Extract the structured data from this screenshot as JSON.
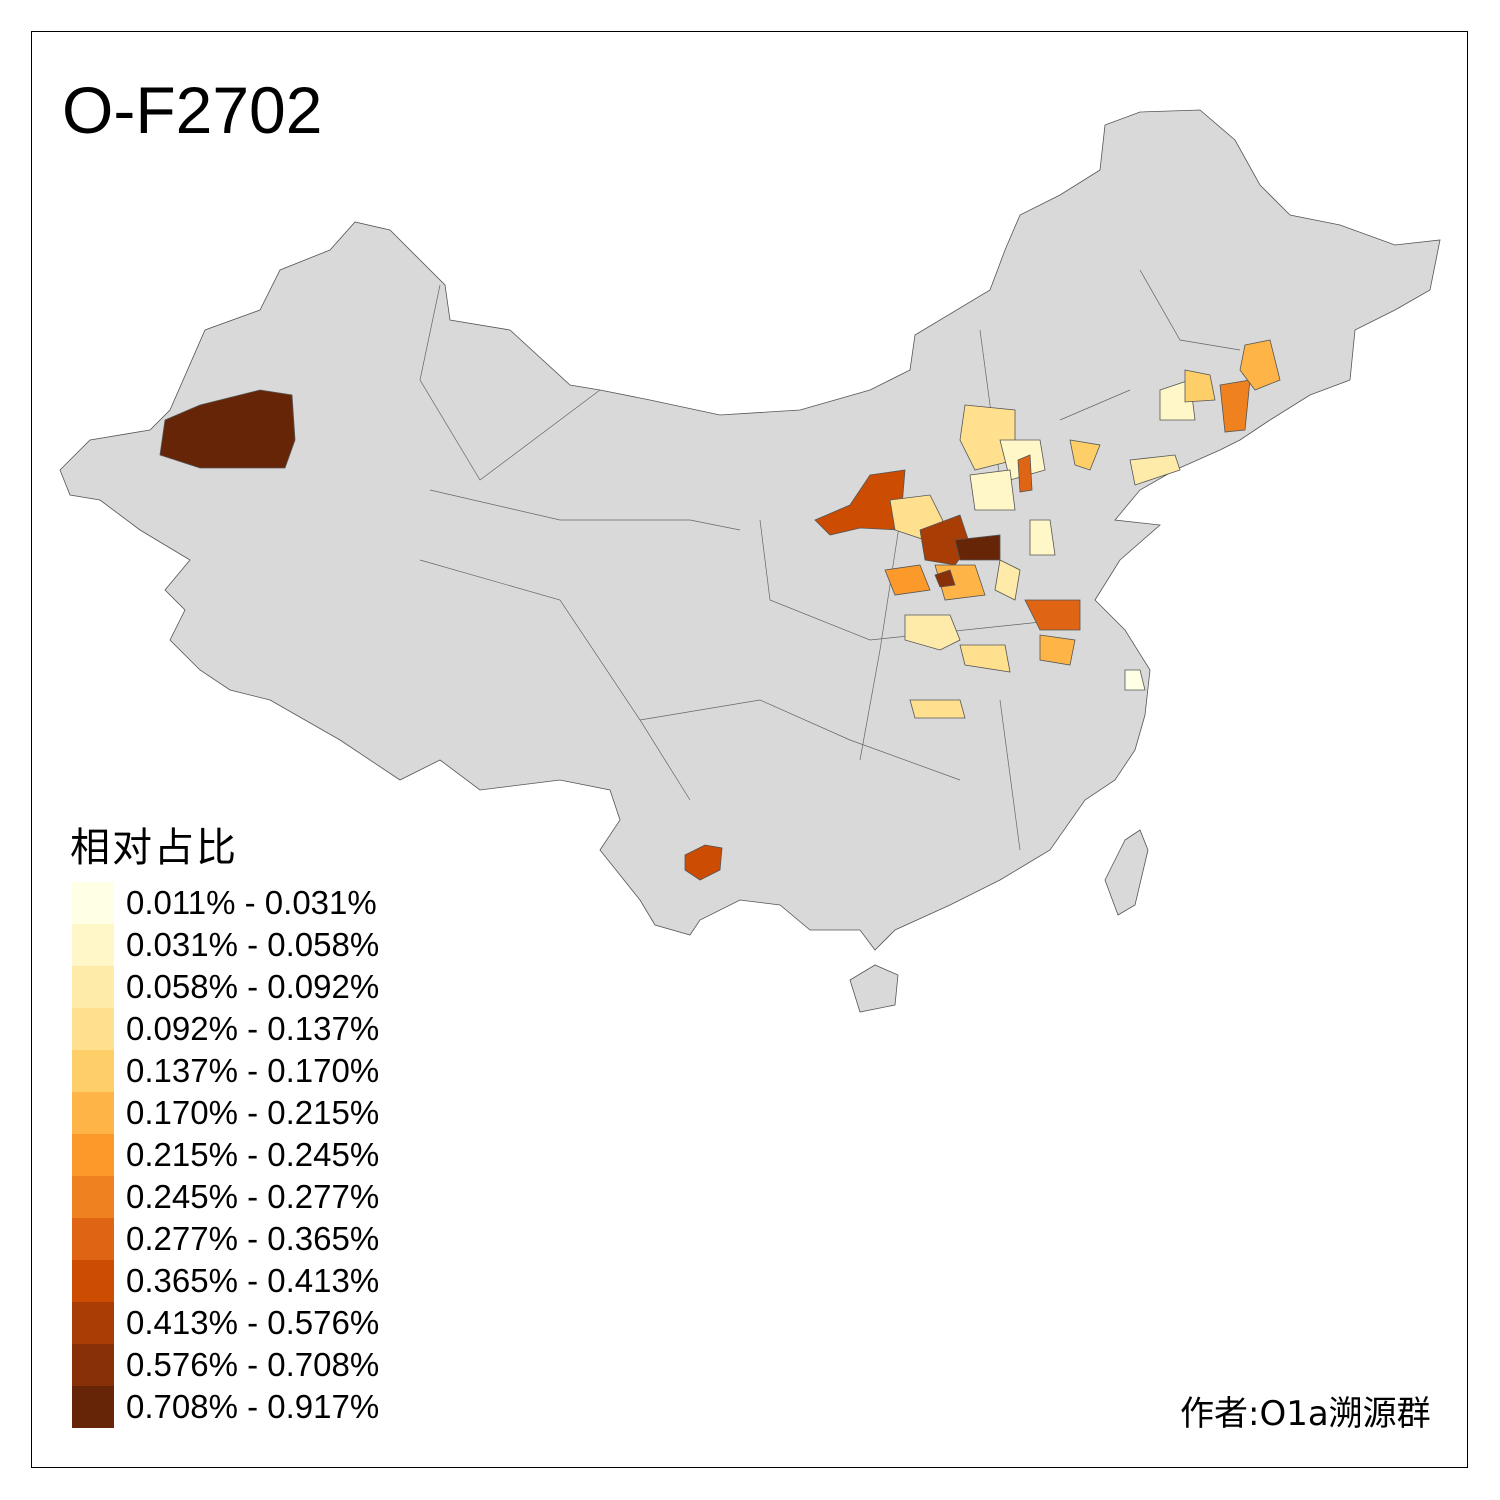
{
  "title": "O-F2702",
  "legend": {
    "title": "相对占比",
    "classes": [
      {
        "label": "0.011% - 0.031%",
        "color": "#FFFFE5"
      },
      {
        "label": "0.031% - 0.058%",
        "color": "#FFF7C8"
      },
      {
        "label": "0.058% - 0.092%",
        "color": "#FEEBAA"
      },
      {
        "label": "0.092% - 0.137%",
        "color": "#FEE08F"
      },
      {
        "label": "0.137% - 0.170%",
        "color": "#FECF68"
      },
      {
        "label": "0.170% - 0.215%",
        "color": "#FEB446"
      },
      {
        "label": "0.215% - 0.245%",
        "color": "#FB9A2A"
      },
      {
        "label": "0.245% - 0.277%",
        "color": "#F0811F"
      },
      {
        "label": "0.277% - 0.365%",
        "color": "#DF6515"
      },
      {
        "label": "0.365% - 0.413%",
        "color": "#CC4C02"
      },
      {
        "label": "0.413% - 0.576%",
        "color": "#A83D05"
      },
      {
        "label": "0.576% - 0.708%",
        "color": "#883008"
      },
      {
        "label": "0.708% - 0.917%",
        "color": "#662506"
      }
    ]
  },
  "map": {
    "base_color": "#D9D9D9",
    "border_color": "#555555"
  },
  "author": "作者:O1a溯源群"
}
